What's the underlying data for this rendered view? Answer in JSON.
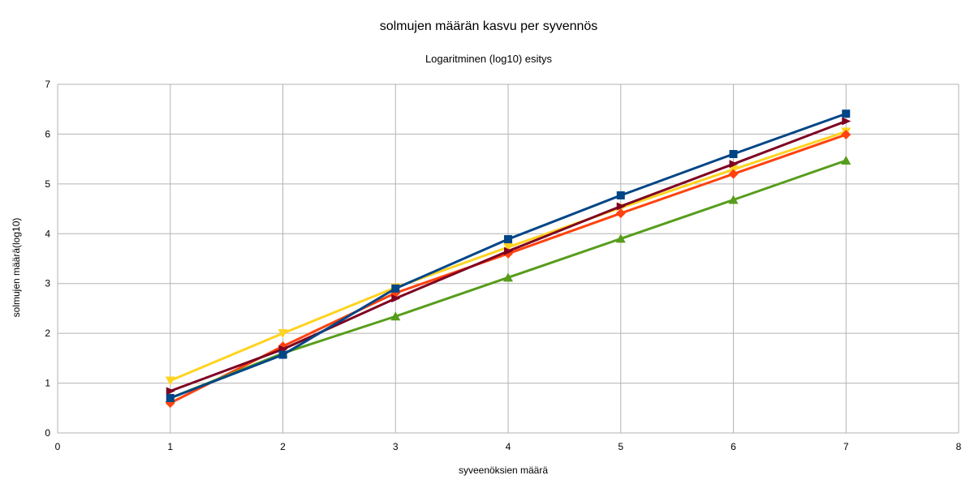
{
  "chart_data": {
    "type": "line",
    "title": "solmujen määrän kasvu per syvennös",
    "subtitle": "Logaritminen (log10) esitys",
    "xlabel": "syveenöksien määrä",
    "ylabel": "solmujen määrä(log10)",
    "xlim": [
      0,
      8
    ],
    "ylim": [
      0,
      7
    ],
    "x_ticks": [
      0,
      1,
      2,
      3,
      4,
      5,
      6,
      7,
      8
    ],
    "y_ticks": [
      0,
      1,
      2,
      3,
      4,
      5,
      6,
      7
    ],
    "grid": true,
    "legend": "none",
    "x": [
      1,
      2,
      3,
      4,
      5,
      6,
      7
    ],
    "series": [
      {
        "color": "#ffd320",
        "marker": "star",
        "values": [
          1.05,
          2.0,
          2.92,
          3.73,
          4.52,
          5.29,
          6.05
        ]
      },
      {
        "color": "#ff420e",
        "marker": "diamond",
        "values": [
          0.6,
          1.74,
          2.81,
          3.6,
          4.41,
          5.2,
          5.99
        ]
      },
      {
        "color": "#579d1c",
        "marker": "triangle",
        "values": [
          0.7,
          1.6,
          2.34,
          3.12,
          3.9,
          4.68,
          5.47
        ]
      },
      {
        "color": "#7e0021",
        "marker": "triangle-right",
        "values": [
          0.84,
          1.68,
          2.7,
          3.65,
          4.55,
          5.4,
          6.26
        ]
      },
      {
        "color": "#004586",
        "marker": "square",
        "values": [
          0.7,
          1.57,
          2.9,
          3.89,
          4.77,
          5.6,
          6.41
        ]
      }
    ]
  }
}
